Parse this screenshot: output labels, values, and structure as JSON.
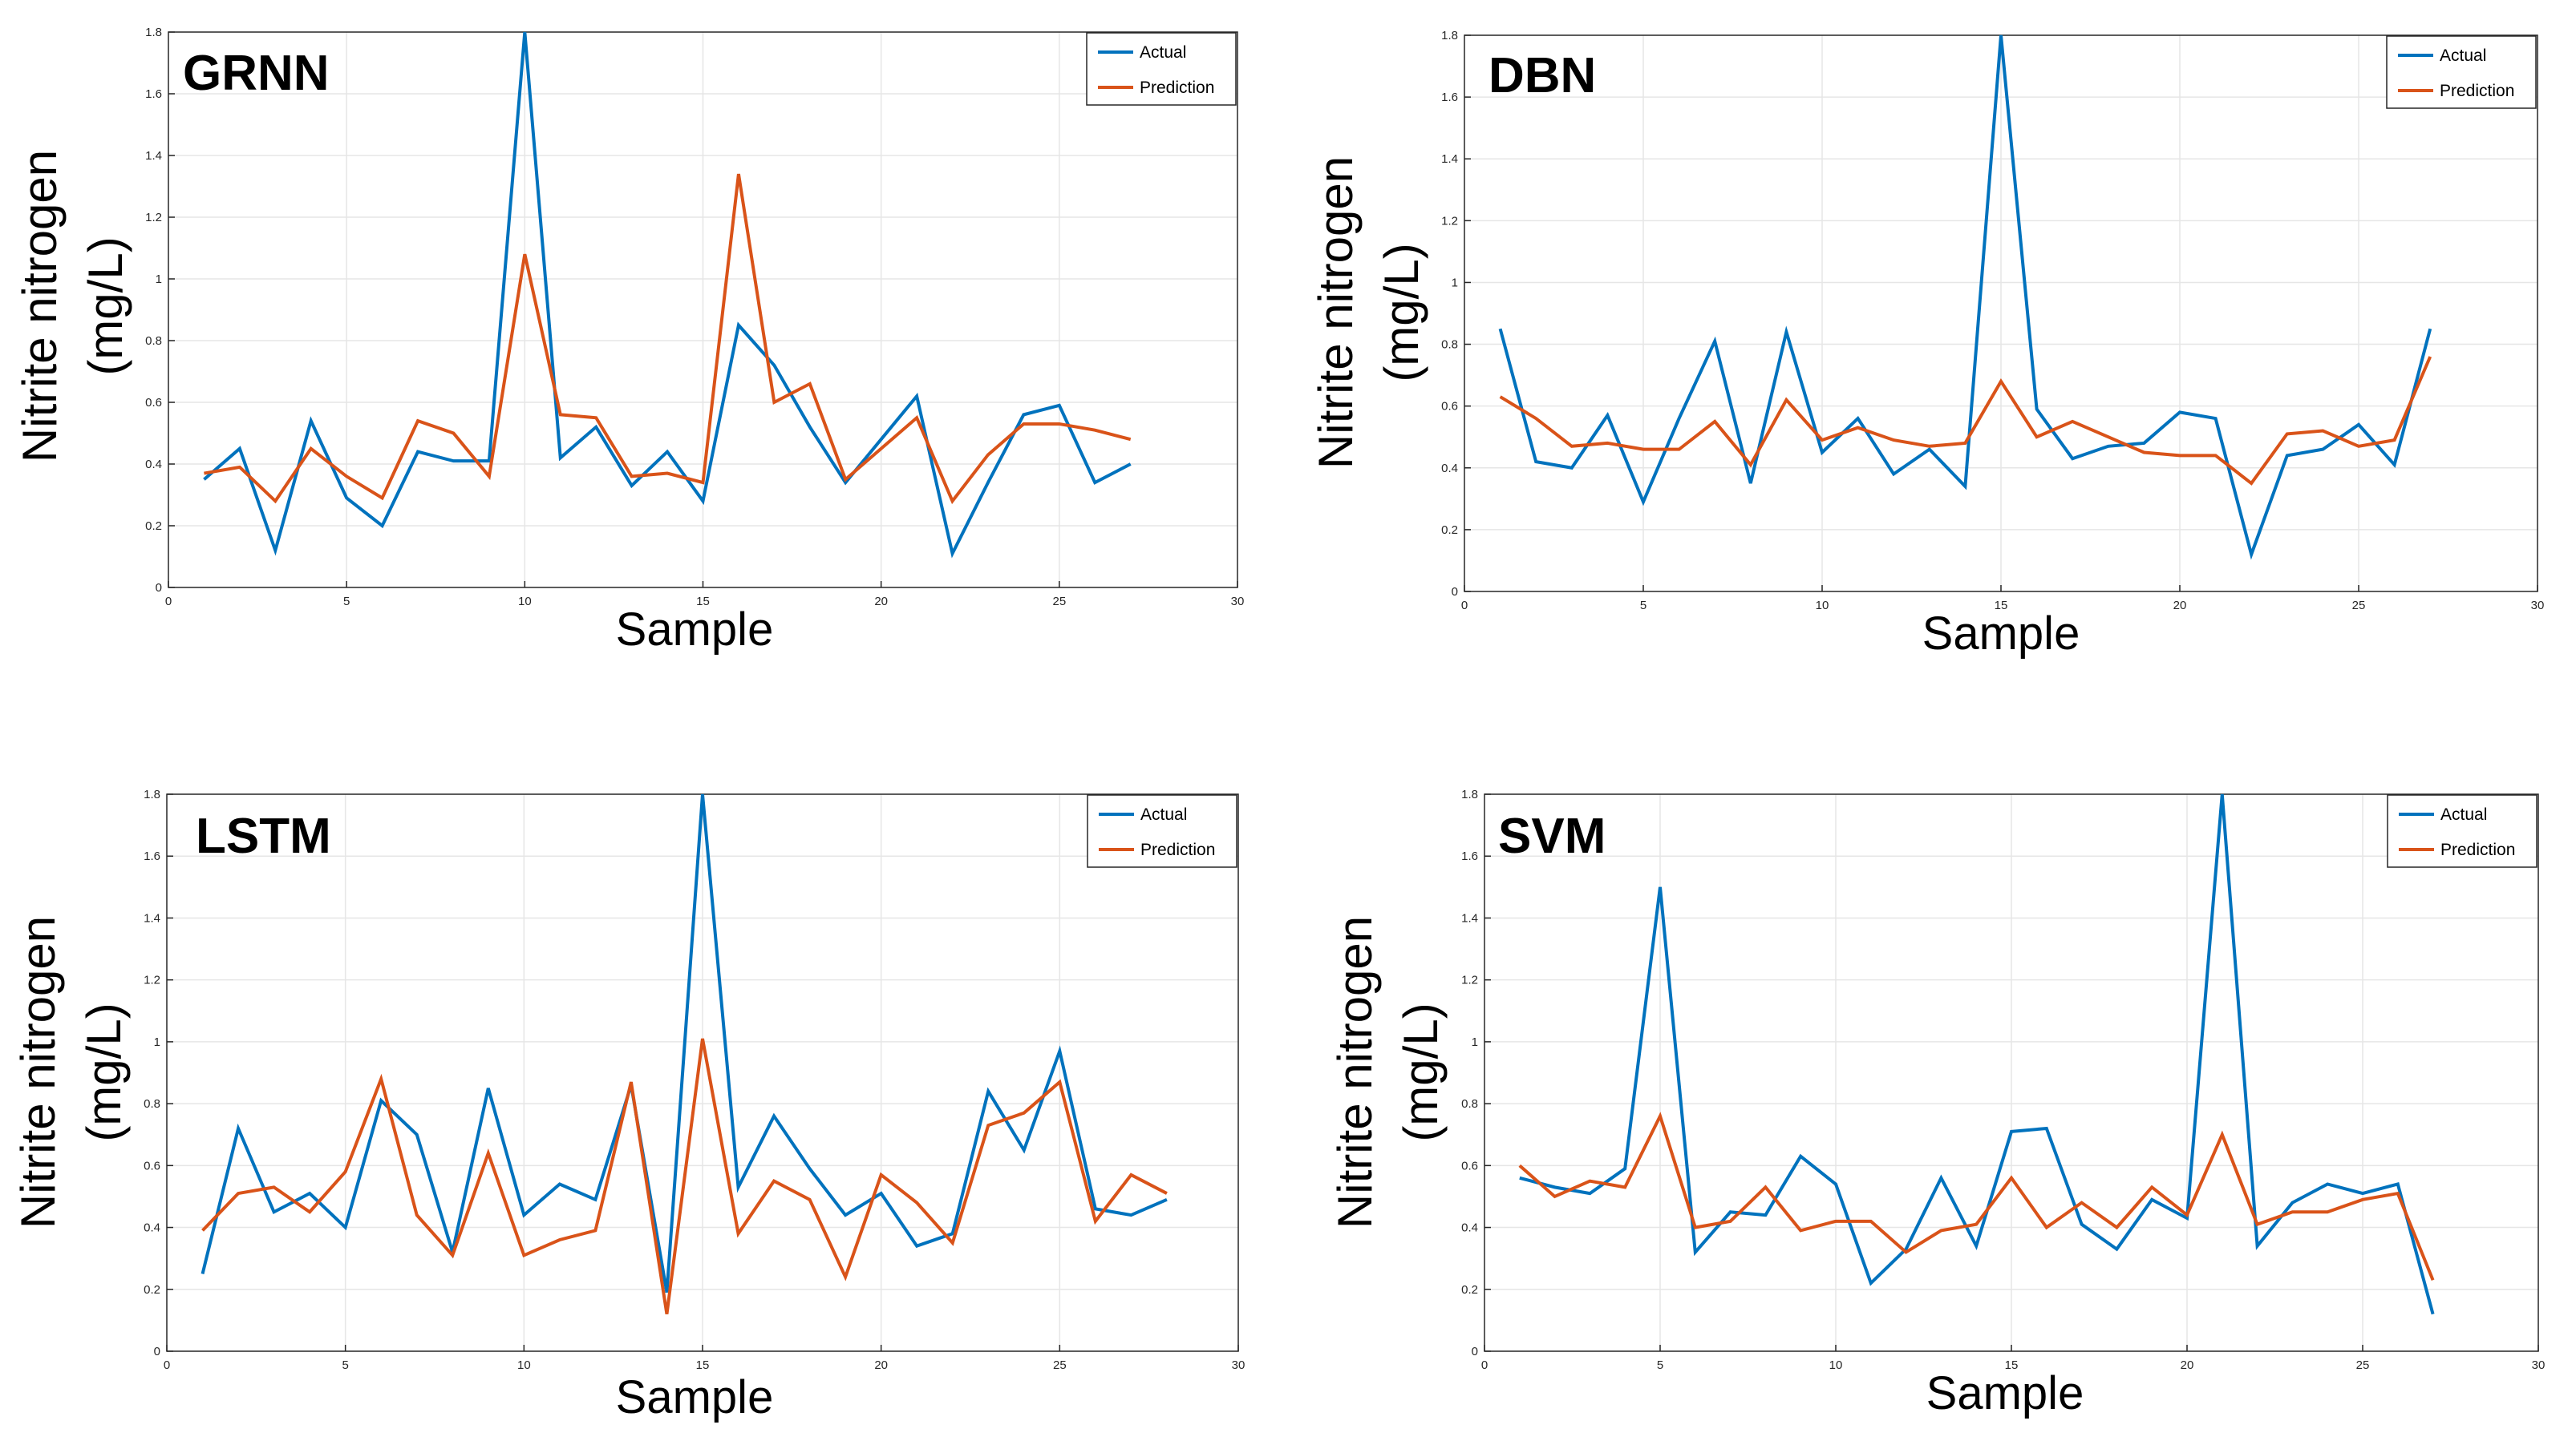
{
  "colors": {
    "actual": "#0072BD",
    "prediction": "#D95319",
    "grid": "#e6e6e6",
    "axis": "#262626"
  },
  "chart_data": [
    {
      "type": "line",
      "title": "GRNN",
      "xlabel": "Sample",
      "ylabel_line1": "Nitrite nitrogen",
      "ylabel_line2": "(mg/L)",
      "xlim": [
        0,
        30
      ],
      "ylim": [
        0,
        1.8
      ],
      "xticks": [
        0,
        5,
        10,
        15,
        20,
        25,
        30
      ],
      "yticks": [
        0,
        0.2,
        0.4,
        0.6,
        0.8,
        1,
        1.2,
        1.4,
        1.6,
        1.8
      ],
      "xtick_labels": [
        "0",
        "5",
        "10",
        "15",
        "20",
        "25",
        "30"
      ],
      "ytick_labels": [
        "0",
        "0.2",
        "0.4",
        "0.6",
        "0.8",
        "1",
        "1.2",
        "1.4",
        "1.6",
        "1.8"
      ],
      "legend": [
        "Actual",
        "Prediction"
      ],
      "legend_position": "top-right",
      "x": [
        1,
        2,
        3,
        4,
        5,
        6,
        7,
        8,
        9,
        10,
        11,
        12,
        13,
        14,
        15,
        16,
        17,
        18,
        19,
        20,
        21,
        22,
        23,
        24,
        25,
        26,
        27
      ],
      "series": [
        {
          "name": "Actual",
          "values": [
            0.35,
            0.45,
            0.12,
            0.54,
            0.29,
            0.2,
            0.44,
            0.41,
            0.41,
            1.8,
            0.42,
            0.52,
            0.33,
            0.44,
            0.28,
            0.85,
            0.72,
            0.52,
            0.34,
            0.48,
            0.62,
            0.11,
            0.34,
            0.56,
            0.59,
            0.34,
            0.4
          ]
        },
        {
          "name": "Prediction",
          "values": [
            0.37,
            0.39,
            0.28,
            0.45,
            0.36,
            0.29,
            0.54,
            0.5,
            0.36,
            1.08,
            0.56,
            0.55,
            0.36,
            0.37,
            0.34,
            1.34,
            0.6,
            0.66,
            0.35,
            0.45,
            0.55,
            0.28,
            0.43,
            0.53,
            0.53,
            0.51,
            0.48
          ]
        }
      ]
    },
    {
      "type": "line",
      "title": "DBN",
      "xlabel": "Sample",
      "ylabel_line1": "Nitrite nitrogen",
      "ylabel_line2": "(mg/L)",
      "xlim": [
        0,
        30
      ],
      "ylim": [
        0,
        1.8
      ],
      "xticks": [
        0,
        5,
        10,
        15,
        20,
        25,
        30
      ],
      "yticks": [
        0,
        0.2,
        0.4,
        0.6,
        0.8,
        1,
        1.2,
        1.4,
        1.6,
        1.8
      ],
      "xtick_labels": [
        "0",
        "5",
        "10",
        "15",
        "20",
        "25",
        "30"
      ],
      "ytick_labels": [
        "0",
        "0.2",
        "0.4",
        "0.6",
        "0.8",
        "1",
        "1.2",
        "1.4",
        "1.6",
        "1.8"
      ],
      "legend": [
        "Actual",
        "Prediction"
      ],
      "legend_position": "top-right",
      "x": [
        1,
        2,
        3,
        4,
        5,
        6,
        7,
        8,
        9,
        10,
        11,
        12,
        13,
        14,
        15,
        16,
        17,
        18,
        19,
        20,
        21,
        22,
        23,
        24,
        25,
        26,
        27
      ],
      "series": [
        {
          "name": "Actual",
          "values": [
            0.85,
            0.42,
            0.4,
            0.57,
            0.29,
            0.56,
            0.81,
            0.35,
            0.84,
            0.45,
            0.56,
            0.38,
            0.46,
            0.34,
            1.8,
            0.59,
            0.43,
            0.47,
            0.48,
            0.58,
            0.56,
            0.12,
            0.44,
            0.46,
            0.54,
            0.41,
            0.85
          ]
        },
        {
          "name": "Prediction",
          "values": [
            0.63,
            0.56,
            0.47,
            0.48,
            0.46,
            0.46,
            0.55,
            0.41,
            0.62,
            0.49,
            0.53,
            0.49,
            0.47,
            0.48,
            0.68,
            0.5,
            0.55,
            0.5,
            0.45,
            0.44,
            0.44,
            0.35,
            0.51,
            0.52,
            0.47,
            0.49,
            0.76
          ]
        }
      ]
    },
    {
      "type": "line",
      "title": "LSTM",
      "xlabel": "Sample",
      "ylabel_line1": "Nitrite nitrogen",
      "ylabel_line2": "(mg/L)",
      "xlim": [
        0,
        30
      ],
      "ylim": [
        0,
        1.8
      ],
      "xticks": [
        0,
        5,
        10,
        15,
        20,
        25,
        30
      ],
      "yticks": [
        0,
        0.2,
        0.4,
        0.6,
        0.8,
        1,
        1.2,
        1.4,
        1.6,
        1.8
      ],
      "xtick_labels": [
        "0",
        "5",
        "10",
        "15",
        "20",
        "25",
        "30"
      ],
      "ytick_labels": [
        "0",
        "0.2",
        "0.4",
        "0.6",
        "0.8",
        "1",
        "1.2",
        "1.4",
        "1.6",
        "1.8"
      ],
      "legend": [
        "Actual",
        "Prediction"
      ],
      "legend_position": "top-right",
      "x": [
        1,
        2,
        3,
        4,
        5,
        6,
        7,
        8,
        9,
        10,
        11,
        12,
        13,
        14,
        15,
        16,
        17,
        18,
        19,
        20,
        21,
        22,
        23,
        24,
        25,
        26,
        27,
        28
      ],
      "series": [
        {
          "name": "Actual",
          "values": [
            0.25,
            0.72,
            0.45,
            0.51,
            0.4,
            0.81,
            0.7,
            0.32,
            0.85,
            0.44,
            0.54,
            0.49,
            0.86,
            0.19,
            1.8,
            0.53,
            0.76,
            0.59,
            0.44,
            0.51,
            0.34,
            0.38,
            0.84,
            0.65,
            0.97,
            0.46,
            0.44,
            0.49
          ]
        },
        {
          "name": "Prediction",
          "values": [
            0.39,
            0.51,
            0.53,
            0.45,
            0.58,
            0.88,
            0.44,
            0.31,
            0.64,
            0.31,
            0.36,
            0.39,
            0.87,
            0.12,
            1.01,
            0.38,
            0.55,
            0.49,
            0.24,
            0.57,
            0.48,
            0.35,
            0.73,
            0.77,
            0.87,
            0.42,
            0.57,
            0.51
          ]
        }
      ]
    },
    {
      "type": "line",
      "title": "SVM",
      "xlabel": "Sample",
      "ylabel_line1": "Nitrite nitrogen",
      "ylabel_line2": "(mg/L)",
      "xlim": [
        0,
        30
      ],
      "ylim": [
        0,
        1.8
      ],
      "xticks": [
        0,
        5,
        10,
        15,
        20,
        25,
        30
      ],
      "yticks": [
        0,
        0.2,
        0.4,
        0.6,
        0.8,
        1,
        1.2,
        1.4,
        1.6,
        1.8
      ],
      "xtick_labels": [
        "0",
        "5",
        "10",
        "15",
        "20",
        "25",
        "30"
      ],
      "ytick_labels": [
        "0",
        "0.2",
        "0.4",
        "0.6",
        "0.8",
        "1",
        "1.2",
        "1.4",
        "1.6",
        "1.8"
      ],
      "legend": [
        "Actual",
        "Prediction"
      ],
      "legend_position": "top-right",
      "x": [
        1,
        2,
        3,
        4,
        5,
        6,
        7,
        8,
        9,
        10,
        11,
        12,
        13,
        14,
        15,
        16,
        17,
        18,
        19,
        20,
        21,
        22,
        23,
        24,
        25,
        26,
        27
      ],
      "series": [
        {
          "name": "Actual",
          "values": [
            0.56,
            0.53,
            0.51,
            0.59,
            1.5,
            0.32,
            0.45,
            0.44,
            0.63,
            0.54,
            0.22,
            0.33,
            0.56,
            0.34,
            0.71,
            0.72,
            0.41,
            0.33,
            0.49,
            0.43,
            1.8,
            0.34,
            0.48,
            0.54,
            0.51,
            0.54,
            0.12
          ]
        },
        {
          "name": "Prediction",
          "values": [
            0.6,
            0.5,
            0.55,
            0.53,
            0.76,
            0.4,
            0.42,
            0.53,
            0.39,
            0.42,
            0.42,
            0.32,
            0.39,
            0.41,
            0.56,
            0.4,
            0.48,
            0.4,
            0.53,
            0.44,
            0.7,
            0.41,
            0.45,
            0.45,
            0.49,
            0.51,
            0.23
          ]
        }
      ]
    }
  ]
}
